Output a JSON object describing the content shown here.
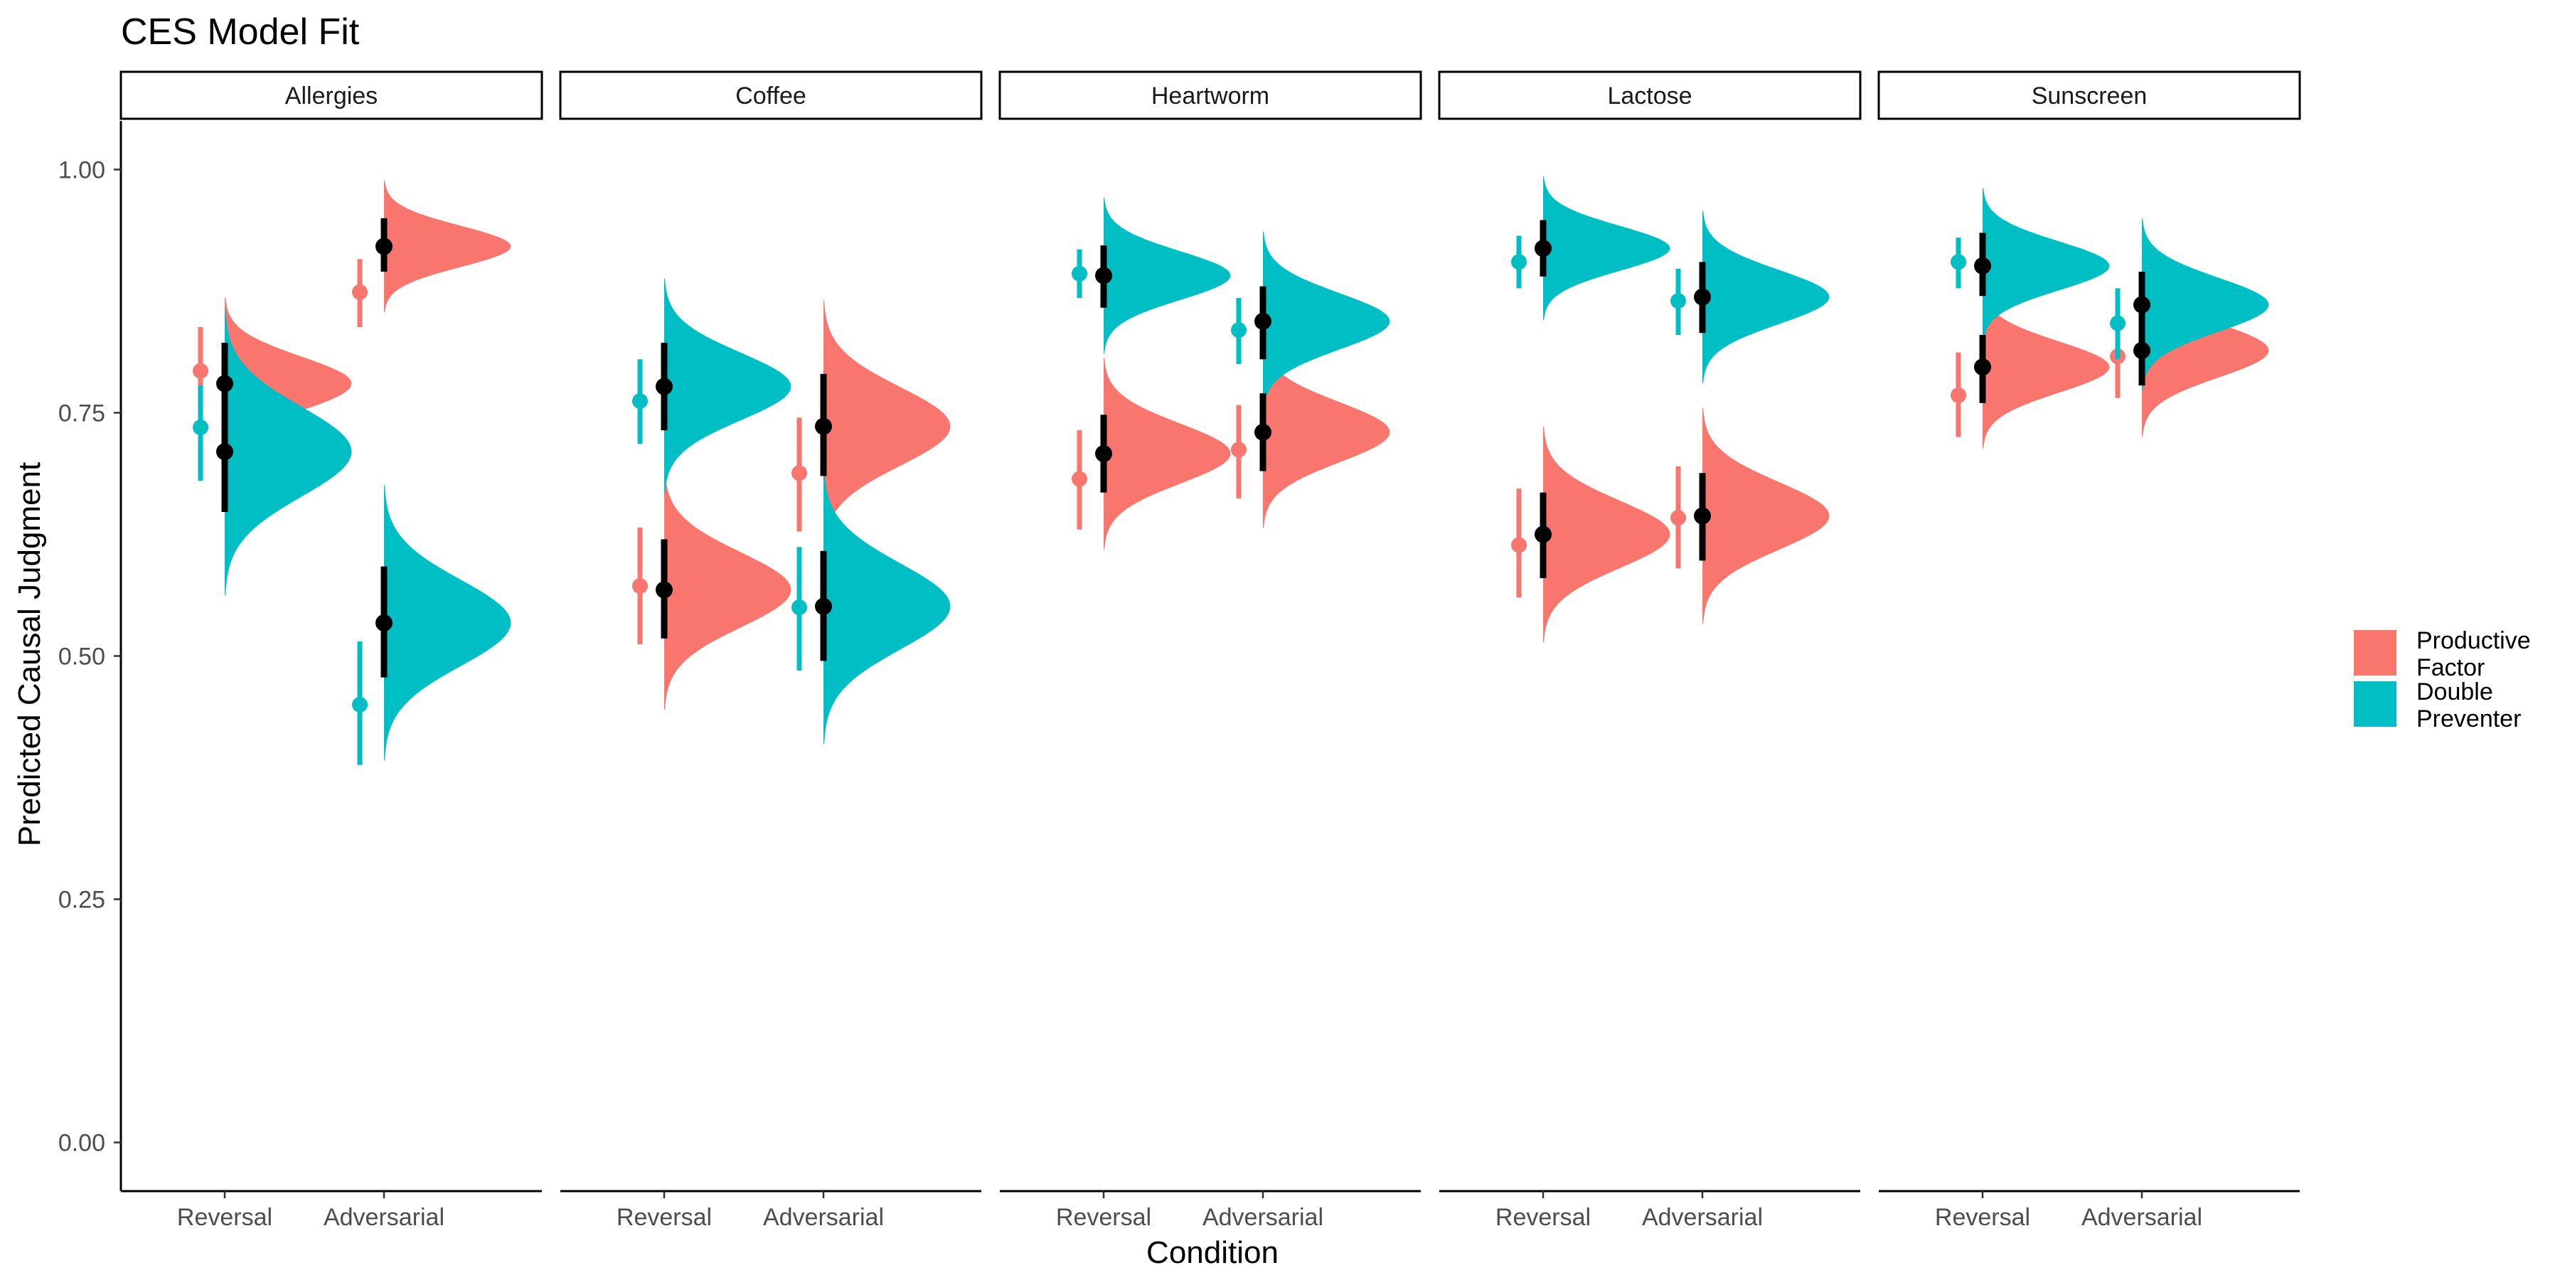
{
  "chart_data": {
    "type": "half-violin pointrange",
    "title": "CES Model Fit",
    "xlabel": "Condition",
    "ylabel": "Predicted Causal Judgment",
    "ylim": [
      -0.05,
      1.05
    ],
    "y_ticks": [
      "0.00",
      "0.25",
      "0.50",
      "0.75",
      "1.00"
    ],
    "categories": [
      "Reversal",
      "Adversarial"
    ],
    "facets": [
      "Allergies",
      "Coffee",
      "Heartworm",
      "Lactose",
      "Sunscreen"
    ],
    "grid": false,
    "legend_position": "right",
    "series": [
      {
        "key": "pf",
        "name": "Productive\nFactor",
        "color": "#F8766D"
      },
      {
        "key": "dp",
        "name": "Double\nPreventer",
        "color": "#00BFC4"
      }
    ],
    "observed": [
      {
        "facet": "Allergies",
        "condition": "Reversal",
        "series": "pf",
        "mean": 0.793,
        "lo": 0.752,
        "hi": 0.838
      },
      {
        "facet": "Allergies",
        "condition": "Reversal",
        "series": "dp",
        "mean": 0.735,
        "lo": 0.68,
        "hi": 0.778
      },
      {
        "facet": "Allergies",
        "condition": "Adversarial",
        "series": "pf",
        "mean": 0.874,
        "lo": 0.838,
        "hi": 0.908
      },
      {
        "facet": "Allergies",
        "condition": "Adversarial",
        "series": "dp",
        "mean": 0.45,
        "lo": 0.388,
        "hi": 0.515
      },
      {
        "facet": "Coffee",
        "condition": "Reversal",
        "series": "pf",
        "mean": 0.572,
        "lo": 0.512,
        "hi": 0.632
      },
      {
        "facet": "Coffee",
        "condition": "Reversal",
        "series": "dp",
        "mean": 0.762,
        "lo": 0.718,
        "hi": 0.805
      },
      {
        "facet": "Coffee",
        "condition": "Adversarial",
        "series": "pf",
        "mean": 0.688,
        "lo": 0.628,
        "hi": 0.745
      },
      {
        "facet": "Coffee",
        "condition": "Adversarial",
        "series": "dp",
        "mean": 0.55,
        "lo": 0.485,
        "hi": 0.612
      },
      {
        "facet": "Heartworm",
        "condition": "Reversal",
        "series": "pf",
        "mean": 0.682,
        "lo": 0.63,
        "hi": 0.732
      },
      {
        "facet": "Heartworm",
        "condition": "Reversal",
        "series": "dp",
        "mean": 0.893,
        "lo": 0.868,
        "hi": 0.918
      },
      {
        "facet": "Heartworm",
        "condition": "Adversarial",
        "series": "pf",
        "mean": 0.712,
        "lo": 0.662,
        "hi": 0.758
      },
      {
        "facet": "Heartworm",
        "condition": "Adversarial",
        "series": "dp",
        "mean": 0.835,
        "lo": 0.8,
        "hi": 0.868
      },
      {
        "facet": "Lactose",
        "condition": "Reversal",
        "series": "pf",
        "mean": 0.614,
        "lo": 0.56,
        "hi": 0.672
      },
      {
        "facet": "Lactose",
        "condition": "Reversal",
        "series": "dp",
        "mean": 0.905,
        "lo": 0.878,
        "hi": 0.932
      },
      {
        "facet": "Lactose",
        "condition": "Adversarial",
        "series": "pf",
        "mean": 0.642,
        "lo": 0.59,
        "hi": 0.695
      },
      {
        "facet": "Lactose",
        "condition": "Adversarial",
        "series": "dp",
        "mean": 0.865,
        "lo": 0.83,
        "hi": 0.898
      },
      {
        "facet": "Sunscreen",
        "condition": "Reversal",
        "series": "pf",
        "mean": 0.768,
        "lo": 0.725,
        "hi": 0.812
      },
      {
        "facet": "Sunscreen",
        "condition": "Reversal",
        "series": "dp",
        "mean": 0.905,
        "lo": 0.878,
        "hi": 0.93
      },
      {
        "facet": "Sunscreen",
        "condition": "Adversarial",
        "series": "pf",
        "mean": 0.808,
        "lo": 0.765,
        "hi": 0.85
      },
      {
        "facet": "Sunscreen",
        "condition": "Adversarial",
        "series": "dp",
        "mean": 0.842,
        "lo": 0.805,
        "hi": 0.878
      }
    ],
    "model": [
      {
        "facet": "Allergies",
        "condition": "Reversal",
        "series": "pf",
        "mean": 0.78,
        "lo": 0.738,
        "hi": 0.822,
        "spread": 0.072
      },
      {
        "facet": "Allergies",
        "condition": "Reversal",
        "series": "dp",
        "mean": 0.71,
        "lo": 0.648,
        "hi": 0.768,
        "spread": 0.12
      },
      {
        "facet": "Allergies",
        "condition": "Adversarial",
        "series": "pf",
        "mean": 0.921,
        "lo": 0.895,
        "hi": 0.95,
        "spread": 0.055
      },
      {
        "facet": "Allergies",
        "condition": "Adversarial",
        "series": "dp",
        "mean": 0.534,
        "lo": 0.478,
        "hi": 0.592,
        "spread": 0.115
      },
      {
        "facet": "Coffee",
        "condition": "Reversal",
        "series": "pf",
        "mean": 0.568,
        "lo": 0.518,
        "hi": 0.62,
        "spread": 0.1
      },
      {
        "facet": "Coffee",
        "condition": "Reversal",
        "series": "dp",
        "mean": 0.777,
        "lo": 0.732,
        "hi": 0.822,
        "spread": 0.09
      },
      {
        "facet": "Coffee",
        "condition": "Adversarial",
        "series": "pf",
        "mean": 0.736,
        "lo": 0.685,
        "hi": 0.79,
        "spread": 0.105
      },
      {
        "facet": "Coffee",
        "condition": "Adversarial",
        "series": "dp",
        "mean": 0.551,
        "lo": 0.495,
        "hi": 0.608,
        "spread": 0.115
      },
      {
        "facet": "Heartworm",
        "condition": "Reversal",
        "series": "pf",
        "mean": 0.708,
        "lo": 0.668,
        "hi": 0.748,
        "spread": 0.08
      },
      {
        "facet": "Heartworm",
        "condition": "Reversal",
        "series": "dp",
        "mean": 0.891,
        "lo": 0.858,
        "hi": 0.922,
        "spread": 0.065
      },
      {
        "facet": "Heartworm",
        "condition": "Adversarial",
        "series": "pf",
        "mean": 0.73,
        "lo": 0.69,
        "hi": 0.77,
        "spread": 0.08
      },
      {
        "facet": "Heartworm",
        "condition": "Adversarial",
        "series": "dp",
        "mean": 0.844,
        "lo": 0.805,
        "hi": 0.88,
        "spread": 0.075
      },
      {
        "facet": "Lactose",
        "condition": "Reversal",
        "series": "pf",
        "mean": 0.625,
        "lo": 0.58,
        "hi": 0.668,
        "spread": 0.09
      },
      {
        "facet": "Lactose",
        "condition": "Reversal",
        "series": "dp",
        "mean": 0.919,
        "lo": 0.89,
        "hi": 0.948,
        "spread": 0.06
      },
      {
        "facet": "Lactose",
        "condition": "Adversarial",
        "series": "pf",
        "mean": 0.644,
        "lo": 0.598,
        "hi": 0.688,
        "spread": 0.09
      },
      {
        "facet": "Lactose",
        "condition": "Adversarial",
        "series": "dp",
        "mean": 0.869,
        "lo": 0.832,
        "hi": 0.905,
        "spread": 0.072
      },
      {
        "facet": "Sunscreen",
        "condition": "Reversal",
        "series": "pf",
        "mean": 0.797,
        "lo": 0.76,
        "hi": 0.83,
        "spread": 0.068
      },
      {
        "facet": "Sunscreen",
        "condition": "Reversal",
        "series": "dp",
        "mean": 0.901,
        "lo": 0.87,
        "hi": 0.935,
        "spread": 0.065
      },
      {
        "facet": "Sunscreen",
        "condition": "Adversarial",
        "series": "pf",
        "mean": 0.814,
        "lo": 0.778,
        "hi": 0.85,
        "spread": 0.072
      },
      {
        "facet": "Sunscreen",
        "condition": "Adversarial",
        "series": "dp",
        "mean": 0.861,
        "lo": 0.826,
        "hi": 0.895,
        "spread": 0.072
      }
    ]
  }
}
